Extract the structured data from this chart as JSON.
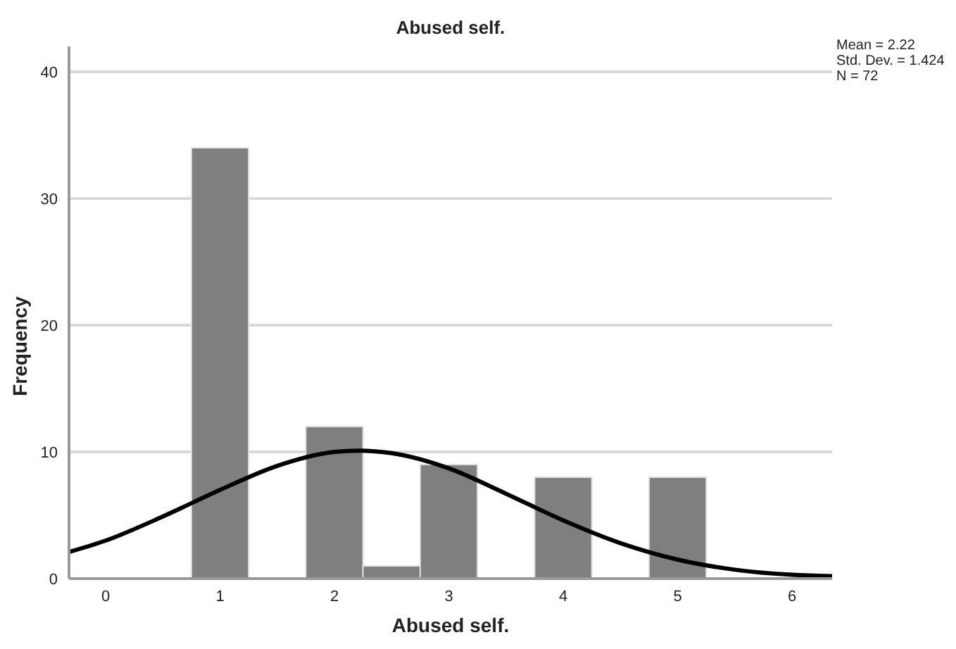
{
  "chart_data": {
    "type": "histogram",
    "title": "Abused self.",
    "xlabel": "Abused self.",
    "ylabel": "Frequency",
    "annotations": [
      "Mean = 2.22",
      "Std. Dev. = 1.424",
      "N = 72"
    ],
    "xlim": [
      -0.32,
      6.35
    ],
    "xticks": [
      0,
      1,
      2,
      3,
      4,
      5,
      6
    ],
    "ylim": [
      0,
      42
    ],
    "yticks": [
      0,
      10,
      20,
      30,
      40
    ],
    "grid": "y",
    "series": [
      {
        "color": "#7f7f7f",
        "bins": [
          0.75,
          1.25,
          1.75,
          2.25,
          2.75,
          3.25,
          3.75,
          4.25,
          4.75,
          5.25
        ],
        "values": [
          34,
          0,
          12,
          1,
          9,
          0,
          8,
          0,
          8
        ]
      },
      {
        "type": "line",
        "color": "#000000",
        "x": [
          -0.32,
          0,
          0.5,
          1,
          1.5,
          2,
          2.22,
          2.5,
          3,
          3.5,
          4,
          4.5,
          5,
          5.5,
          6,
          6.35
        ],
        "values": [
          2.1,
          3.0,
          4.9,
          7.0,
          8.9,
          10.0,
          10.1,
          9.9,
          8.7,
          6.7,
          4.6,
          2.8,
          1.5,
          0.7,
          0.3,
          0.2
        ]
      }
    ]
  }
}
